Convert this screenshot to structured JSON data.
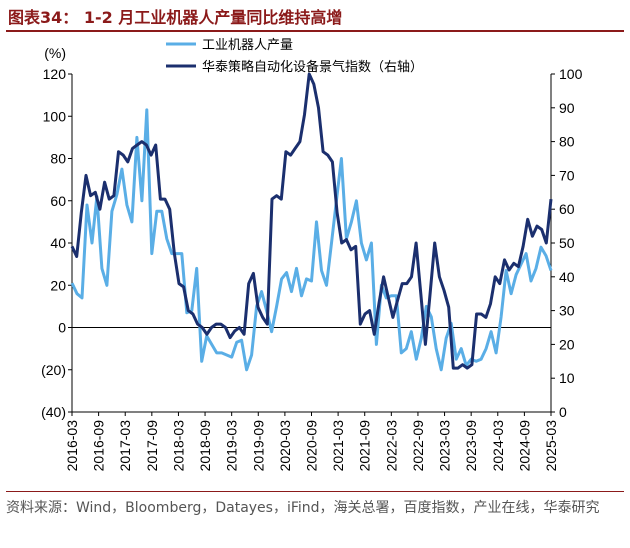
{
  "title": "图表34：  1-2 月工业机器人产量同比维持高增",
  "source": "资料来源：Wind，Bloomberg，Datayes，iFind，海关总署，百度指数，产业在线，华泰研究",
  "colors": {
    "series1": "#5aaee6",
    "series2": "#1b2f6e",
    "title": "#8b1a1a"
  },
  "chart_data": {
    "type": "line",
    "ylabel_left": "(%)",
    "ylim_left": [
      -40,
      120
    ],
    "ylim_right": [
      0,
      100
    ],
    "yticks_left": [
      "120",
      "100",
      "80",
      "60",
      "40",
      "20",
      "0",
      "(20)",
      "(40)"
    ],
    "yticks_right": [
      "100",
      "90",
      "80",
      "70",
      "60",
      "50",
      "40",
      "30",
      "20",
      "10",
      "0"
    ],
    "xticks": [
      "2016-03",
      "2016-09",
      "2017-03",
      "2017-09",
      "2018-03",
      "2018-09",
      "2019-03",
      "2019-09",
      "2020-03",
      "2020-09",
      "2021-03",
      "2021-09",
      "2022-03",
      "2022-09",
      "2023-03",
      "2023-09",
      "2024-03",
      "2024-09",
      "2025-03"
    ],
    "x_start": "2016-03",
    "x_end": "2025-03",
    "legend": [
      "工业机器人产量",
      "华泰策略自动化设备景气指数（右轴）"
    ],
    "series": [
      {
        "name": "工业机器人产量",
        "axis": "left",
        "values": [
          21,
          16,
          14,
          58,
          40,
          62,
          28,
          20,
          55,
          63,
          75,
          58,
          50,
          90,
          60,
          103,
          35,
          55,
          55,
          42,
          35,
          35,
          35,
          7,
          8,
          28,
          -16,
          -4,
          -8,
          -12,
          -12,
          -13,
          -14,
          -7,
          -6,
          -20,
          -13,
          10,
          17,
          8,
          -2,
          10,
          23,
          26,
          17,
          28,
          15,
          23,
          22,
          50,
          27,
          20,
          40,
          60,
          80,
          42,
          50,
          60,
          40,
          32,
          40,
          -8,
          20,
          14,
          15,
          15,
          -12,
          -10,
          -2,
          -15,
          -5,
          10,
          5,
          -10,
          -20,
          -5,
          2,
          -15,
          -10,
          -18,
          -15,
          -16,
          -15,
          -10,
          -2,
          -12,
          5,
          27,
          16,
          25,
          30,
          35,
          22,
          28,
          38,
          34,
          27
        ],
        "start": "2016-03"
      },
      {
        "name": "华泰策略自动化设备景气指数（右轴）",
        "axis": "right",
        "values": [
          49,
          46,
          59,
          70,
          64,
          65,
          60,
          68,
          63,
          64,
          77,
          76,
          74,
          78,
          79,
          80,
          79,
          76,
          79,
          63,
          63,
          60,
          47,
          38,
          37,
          30,
          29,
          26,
          25,
          23,
          25,
          26,
          26,
          25,
          22,
          24,
          25,
          23,
          38,
          41,
          31,
          28,
          26,
          63,
          64,
          63,
          77,
          76,
          78,
          80,
          88,
          100,
          97,
          90,
          77,
          76,
          74,
          59,
          50,
          51,
          48,
          49,
          26,
          29,
          30,
          23,
          32,
          40,
          34,
          28,
          33,
          38,
          38,
          40,
          50,
          35,
          20,
          35,
          50,
          40,
          36,
          31,
          13,
          13,
          14,
          13,
          14,
          29,
          29,
          28,
          32,
          40,
          38,
          45,
          42,
          44,
          43,
          49,
          57,
          52,
          55,
          54,
          50,
          63
        ],
        "start": "2016-03"
      }
    ]
  }
}
